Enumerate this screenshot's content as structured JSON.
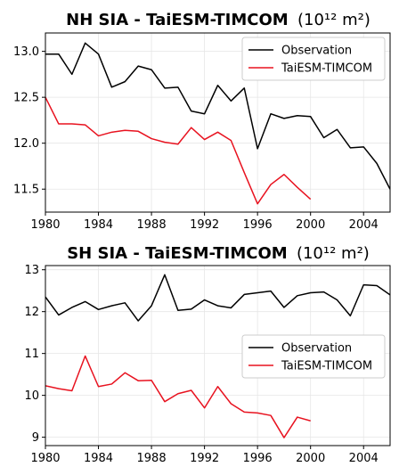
{
  "colors": {
    "observation": "#000000",
    "model": "#e8121f",
    "grid": "#e6e6e6",
    "legend_border": "#cccccc"
  },
  "chart_data": [
    {
      "type": "line",
      "title": "NH SIA - TaiESM-TIMCOM",
      "title_unit": "(10¹² m²)",
      "xlabel": "",
      "ylabel": "",
      "xlim": [
        1980,
        2006
      ],
      "ylim": [
        11.25,
        13.2
      ],
      "grid": true,
      "legend_position": "upper right",
      "x_ticks": [
        1980,
        1984,
        1988,
        1992,
        1996,
        2000,
        2004
      ],
      "y_ticks": [
        11.5,
        12.0,
        12.5,
        13.0
      ],
      "y_tick_labels": [
        "11.5",
        "12.0",
        "12.5",
        "13.0"
      ],
      "series": [
        {
          "name": "Observation",
          "color": "#000000",
          "x": [
            1979,
            1980,
            1981,
            1982,
            1983,
            1984,
            1985,
            1986,
            1987,
            1988,
            1989,
            1990,
            1991,
            1992,
            1993,
            1994,
            1995,
            1996,
            1997,
            1998,
            1999,
            2000,
            2001,
            2002,
            2003,
            2004,
            2005,
            2006
          ],
          "values": [
            13.0,
            12.97,
            12.97,
            12.75,
            13.09,
            12.97,
            12.61,
            12.67,
            12.84,
            12.8,
            12.6,
            12.61,
            12.35,
            12.32,
            12.63,
            12.46,
            12.6,
            11.94,
            12.32,
            12.27,
            12.3,
            12.29,
            12.06,
            12.15,
            11.95,
            11.96,
            11.78,
            11.5
          ]
        },
        {
          "name": "TaiESM-TIMCOM",
          "color": "#e8121f",
          "x": [
            1980,
            1981,
            1982,
            1983,
            1984,
            1985,
            1986,
            1987,
            1988,
            1989,
            1990,
            1991,
            1992,
            1993,
            1994,
            1995,
            1996,
            1997,
            1998,
            1999,
            2000
          ],
          "values": [
            12.5,
            12.21,
            12.21,
            12.2,
            12.08,
            12.12,
            12.14,
            12.13,
            12.05,
            12.01,
            11.99,
            12.17,
            12.04,
            12.12,
            12.03,
            11.68,
            11.34,
            11.55,
            11.66,
            11.52,
            11.39
          ]
        }
      ]
    },
    {
      "type": "line",
      "title": "SH SIA - TaiESM-TIMCOM",
      "title_unit": "(10¹² m²)",
      "xlabel": "",
      "ylabel": "",
      "xlim": [
        1980,
        2006
      ],
      "ylim": [
        8.8,
        13.1
      ],
      "grid": true,
      "legend_position": "center right",
      "x_ticks": [
        1980,
        1984,
        1988,
        1992,
        1996,
        2000,
        2004
      ],
      "y_ticks": [
        9,
        10,
        11,
        12,
        13
      ],
      "y_tick_labels": [
        "9",
        "10",
        "11",
        "12",
        "13"
      ],
      "series": [
        {
          "name": "Observation",
          "color": "#000000",
          "x": [
            1980,
            1981,
            1982,
            1983,
            1984,
            1985,
            1986,
            1987,
            1988,
            1989,
            1990,
            1991,
            1992,
            1993,
            1994,
            1995,
            1996,
            1997,
            1998,
            1999,
            2000,
            2001,
            2002,
            2003,
            2004,
            2005,
            2006
          ],
          "values": [
            12.35,
            11.92,
            12.1,
            12.24,
            12.05,
            12.14,
            12.21,
            11.78,
            12.14,
            12.88,
            12.03,
            12.06,
            12.28,
            12.14,
            12.09,
            12.41,
            12.45,
            12.49,
            12.1,
            12.38,
            12.45,
            12.47,
            12.28,
            11.9,
            12.64,
            12.62,
            12.4
          ]
        },
        {
          "name": "TaiESM-TIMCOM",
          "color": "#e8121f",
          "x": [
            1980,
            1981,
            1982,
            1983,
            1984,
            1985,
            1986,
            1987,
            1988,
            1989,
            1990,
            1991,
            1992,
            1993,
            1994,
            1995,
            1996,
            1997,
            1998,
            1999,
            2000
          ],
          "values": [
            10.23,
            10.16,
            10.11,
            10.94,
            10.21,
            10.27,
            10.54,
            10.35,
            10.36,
            9.85,
            10.04,
            10.12,
            9.7,
            10.21,
            9.8,
            9.6,
            9.58,
            9.52,
            8.99,
            9.48,
            9.39
          ]
        }
      ]
    }
  ]
}
